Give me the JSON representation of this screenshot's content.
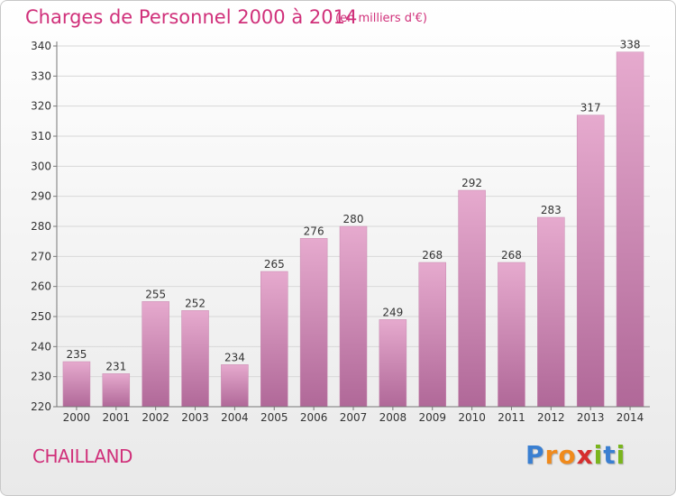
{
  "header": {
    "title": "Charges de Personnel 2000 à 2014",
    "subtitle": "(en milliers d'€)"
  },
  "footer": {
    "commune": "CHAILLAND",
    "brand_letters": [
      {
        "ch": "P",
        "color": "#3a7fd1"
      },
      {
        "ch": "r",
        "color": "#f08a1c"
      },
      {
        "ch": "o",
        "color": "#f08a1c"
      },
      {
        "ch": "x",
        "color": "#d62e2e"
      },
      {
        "ch": "i",
        "color": "#7ab51d"
      },
      {
        "ch": "t",
        "color": "#3a7fd1"
      },
      {
        "ch": "i",
        "color": "#7ab51d"
      }
    ]
  },
  "colors": {
    "accent": "#d0307a",
    "bar_top": "#e6aace",
    "bar_bottom": "#b06898",
    "grid": "#d8d8d8",
    "axis": "#777777",
    "text": "#333333"
  },
  "chart_data": {
    "type": "bar",
    "categories": [
      "2000",
      "2001",
      "2002",
      "2003",
      "2004",
      "2005",
      "2006",
      "2007",
      "2008",
      "2009",
      "2010",
      "2011",
      "2012",
      "2013",
      "2014"
    ],
    "values": [
      235,
      231,
      255,
      252,
      234,
      265,
      276,
      280,
      249,
      268,
      292,
      268,
      283,
      317,
      338
    ],
    "ylim": [
      220,
      340
    ],
    "yticks": [
      220,
      230,
      240,
      250,
      260,
      270,
      280,
      290,
      300,
      310,
      320,
      330,
      340
    ],
    "grid": true,
    "legend": "none",
    "data_labels": true
  }
}
